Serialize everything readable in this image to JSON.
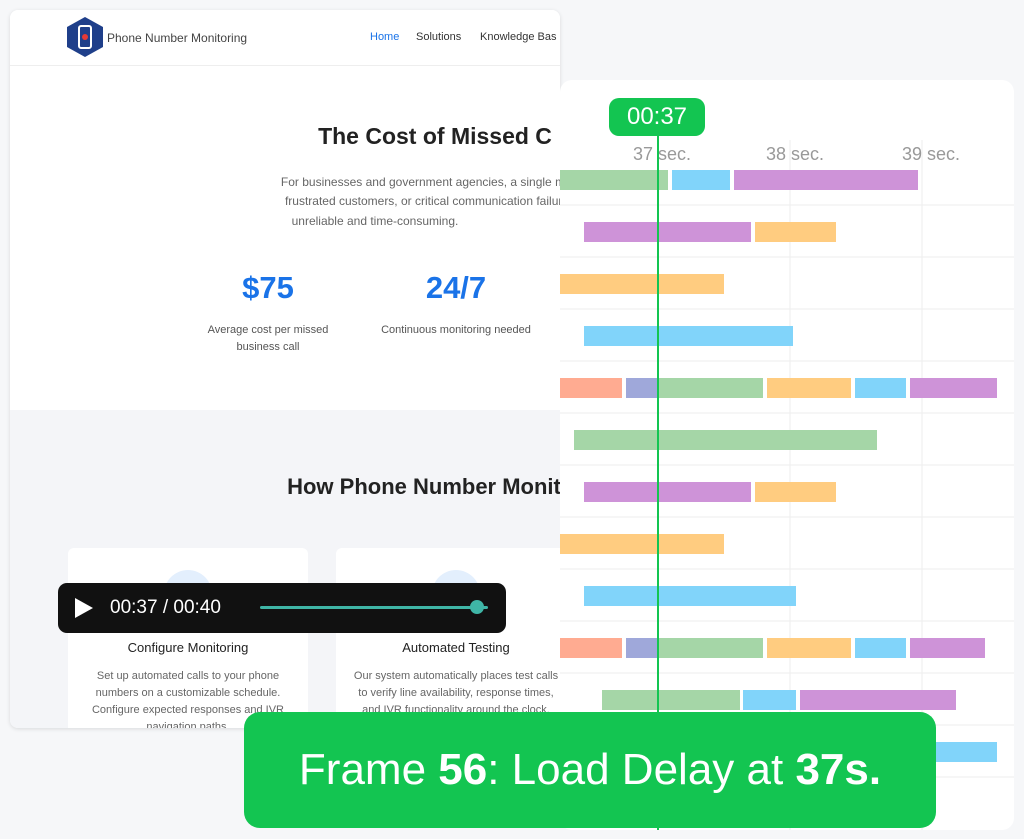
{
  "site": {
    "brand": "Phone Number Monitoring",
    "nav": [
      "Home",
      "Solutions",
      "Knowledge Bas"
    ]
  },
  "hero": {
    "title": "The Cost of Missed C",
    "paragraph": [
      "For businesses and government agencies, a single missed ca",
      "frustrated customers, or critical communication failures. Trac",
      "unreliable and time-consuming."
    ],
    "stats": [
      {
        "value": "$75",
        "label": [
          "Average cost per missed",
          "business call"
        ]
      },
      {
        "value": "24/7",
        "label": [
          "Continuous monitoring needed"
        ]
      }
    ]
  },
  "section": {
    "title": "How Phone Number Monitor",
    "cards": [
      {
        "title": "Configure Monitoring",
        "text": [
          "Set up automated calls to your phone",
          "numbers on a customizable schedule.",
          "Configure expected responses and IVR",
          "navigation paths."
        ]
      },
      {
        "title": "Automated Testing",
        "text": [
          "Our system automatically places test calls",
          "to verify line availability, response times,",
          "and IVR functionality around the clock."
        ]
      }
    ]
  },
  "player": {
    "time": "00:37 / 00:40"
  },
  "timeline": {
    "badge": "00:37",
    "ticks": [
      "37 sec.",
      "38 sec.",
      "39 sec."
    ]
  },
  "banner": {
    "segments": [
      {
        "text": "Frame ",
        "bold": false
      },
      {
        "text": "56",
        "bold": true
      },
      {
        "text": ": Load Delay at ",
        "bold": false
      },
      {
        "text": "37s.",
        "bold": true
      }
    ]
  }
}
